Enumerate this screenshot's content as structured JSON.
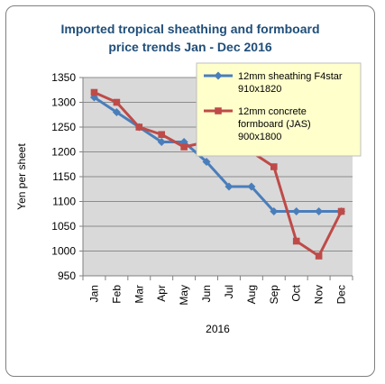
{
  "chart_data": {
    "type": "line",
    "title_lines": [
      "Imported tropical sheathing and formboard",
      "price trends Jan - Dec 2016"
    ],
    "xlabel": "2016",
    "ylabel": "Yen per sheet",
    "categories": [
      "Jan",
      "Feb",
      "Mar",
      "Apr",
      "May",
      "Jun",
      "Jul",
      "Aug",
      "Sep",
      "Oct",
      "Nov",
      "Dec"
    ],
    "ylim": [
      950,
      1350
    ],
    "yticks": [
      950,
      1000,
      1050,
      1100,
      1150,
      1200,
      1250,
      1300,
      1350
    ],
    "grid": "horizontal",
    "legend_position": "top-right",
    "series": [
      {
        "name_lines": [
          "12mm sheathing F4star",
          "910x1820"
        ],
        "color": "#4a7ebb",
        "marker": "diamond",
        "values": [
          1310,
          1280,
          1250,
          1220,
          1220,
          1180,
          1130,
          1130,
          1080,
          1080,
          1080,
          1080
        ]
      },
      {
        "name_lines": [
          "12mm concrete",
          "formboard (JAS)",
          "900x1800"
        ],
        "color": "#be4b48",
        "marker": "square",
        "values": [
          1320,
          1300,
          1250,
          1235,
          1210,
          1220,
          1200,
          1200,
          1170,
          1020,
          990,
          1080
        ]
      }
    ],
    "colors": {
      "plot_background": "#d9d9d9",
      "legend_background": "#ffffcc",
      "title": "#1f4e79"
    }
  }
}
